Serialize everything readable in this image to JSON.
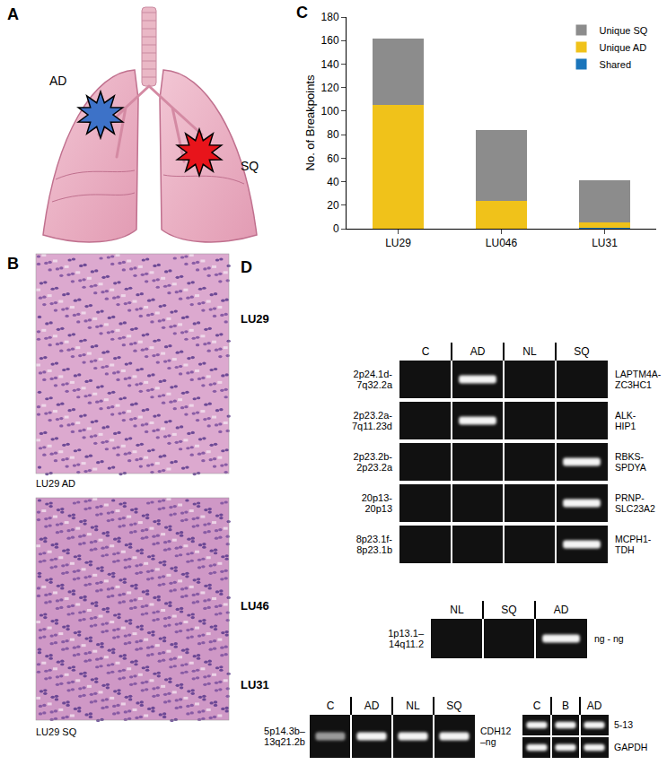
{
  "chart_data": {
    "type": "bar",
    "stacked": true,
    "categories": [
      "LU29",
      "LU046",
      "LU31"
    ],
    "ylabel": "No. of Breakpoints",
    "ylim": [
      0,
      180
    ],
    "yticks": [
      0,
      20,
      40,
      60,
      80,
      100,
      120,
      140,
      160,
      180
    ],
    "grid": false,
    "legend": "top-right",
    "series": [
      {
        "name": "Shared",
        "color": "#1b75bb",
        "values": [
          0,
          0,
          1
        ]
      },
      {
        "name": "Unique AD",
        "color": "#f0c21a",
        "values": [
          105,
          24,
          4
        ]
      },
      {
        "name": "Unique SQ",
        "color": "#8c8c8c",
        "values": [
          57,
          60,
          36
        ]
      }
    ]
  },
  "panel_labels": [
    "A",
    "B",
    "C",
    "D"
  ],
  "panel_a": {
    "tumors": [
      {
        "text": "AD",
        "color": "#3d72c8"
      },
      {
        "text": "SQ",
        "color": "#e8141b"
      }
    ]
  },
  "panel_b": {
    "captions": [
      "LU29 AD",
      "LU29 SQ"
    ]
  },
  "panel_d": {
    "groups": [
      {
        "title": "LU29",
        "gels": [
          {
            "columns": [
              "C",
              "AD",
              "NL",
              "SQ"
            ],
            "rows": [
              {
                "locus": [
                  "2p24.1d-",
                  "7q32.2a"
                ],
                "fusion": [
                  "LAPTM4A-",
                  "ZC3HC1"
                ],
                "bands": [
                  "AD"
                ],
                "faint": []
              },
              {
                "locus": [
                  "2p23.2a-",
                  "7q11.23d"
                ],
                "fusion": [
                  "ALK-",
                  "HIP1"
                ],
                "bands": [
                  "AD"
                ],
                "faint": []
              },
              {
                "locus": [
                  "2p23.2b-",
                  "2p23.2a"
                ],
                "fusion": [
                  "RBKS-",
                  "SPDYA"
                ],
                "bands": [
                  "SQ"
                ],
                "faint": []
              },
              {
                "locus": [
                  "20p13-",
                  "20p13"
                ],
                "fusion": [
                  "PRNP-",
                  "SLC23A2"
                ],
                "bands": [
                  "SQ"
                ],
                "faint": []
              },
              {
                "locus": [
                  "8p23.1f-",
                  "8p23.1b"
                ],
                "fusion": [
                  "MCPH1-",
                  "TDH"
                ],
                "bands": [
                  "SQ"
                ],
                "faint": []
              }
            ]
          }
        ]
      },
      {
        "title": "LU46",
        "gels": [
          {
            "columns": [
              "NL",
              "SQ",
              "AD"
            ],
            "rows": [
              {
                "locus": [
                  "1p13.1–",
                  "14q11.2"
                ],
                "fusion": [
                  "ng - ng"
                ],
                "bands": [
                  "AD"
                ],
                "faint": []
              }
            ]
          }
        ]
      },
      {
        "title": "LU31",
        "gels": [
          {
            "columns": [
              "C",
              "AD",
              "NL",
              "SQ"
            ],
            "rows": [
              {
                "locus": [
                  "5p14.3b–",
                  "13q21.2b"
                ],
                "fusion": [
                  "CDH12",
                  "–ng"
                ],
                "bands": [
                  "C",
                  "AD",
                  "NL",
                  "SQ"
                ],
                "faint": [
                  "C"
                ]
              }
            ]
          },
          {
            "columns": [
              "C",
              "B",
              "AD"
            ],
            "rows": [
              {
                "locus": [],
                "fusion": [
                  "5-13"
                ],
                "bands": [
                  "C",
                  "B",
                  "AD"
                ],
                "faint": []
              },
              {
                "locus": [],
                "fusion": [
                  "GAPDH"
                ],
                "bands": [
                  "C",
                  "B",
                  "AD"
                ],
                "faint": []
              }
            ]
          }
        ]
      }
    ]
  }
}
